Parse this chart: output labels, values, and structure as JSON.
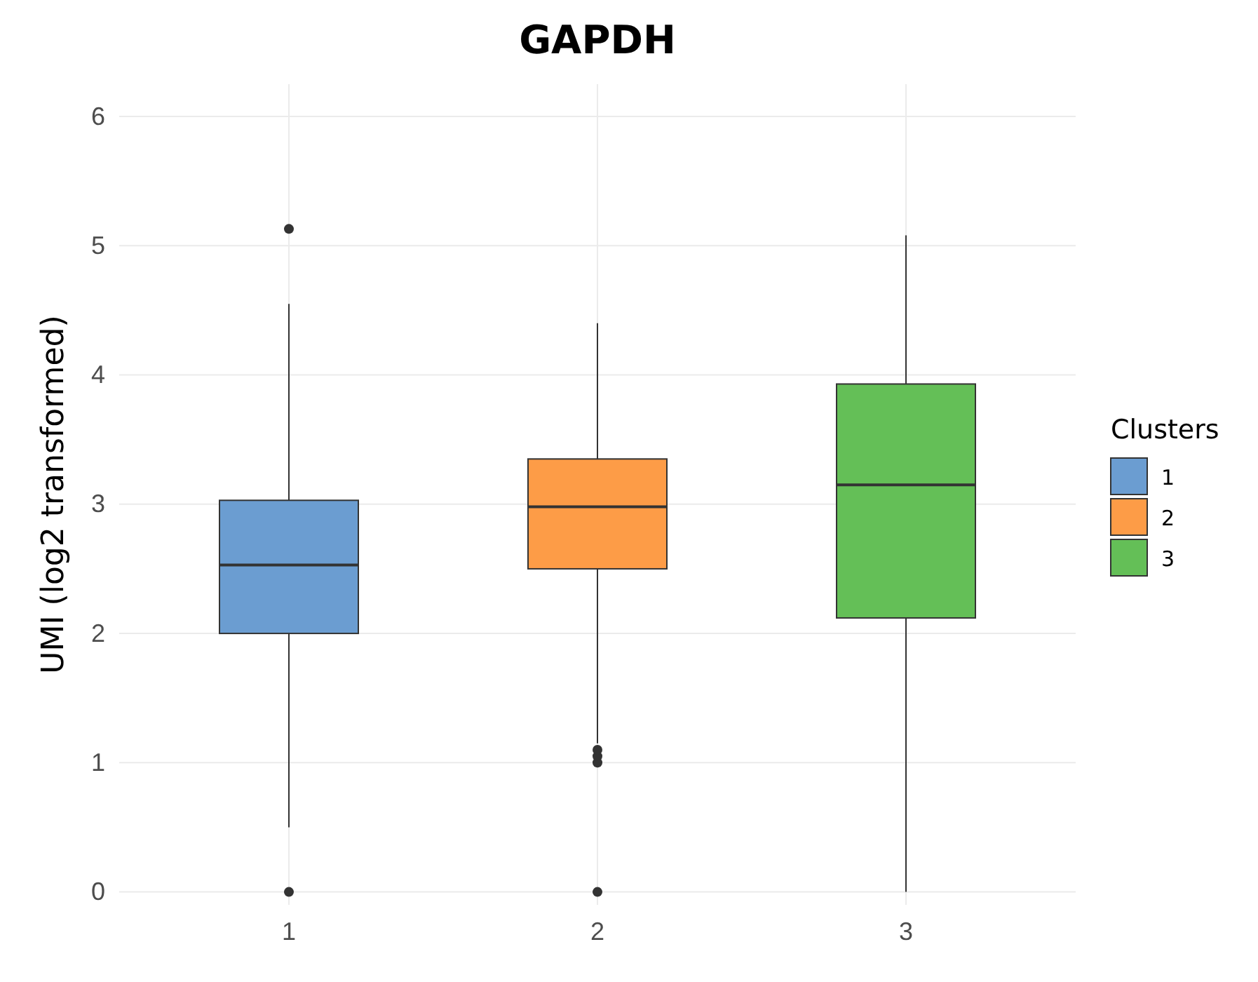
{
  "chart_data": {
    "type": "box",
    "title": "GAPDH",
    "ylabel": "UMI (log2 transformed)",
    "legend_title": "Clusters",
    "categories": [
      "1",
      "2",
      "3"
    ],
    "series": [
      {
        "name": "1",
        "color": "#6b9dd1",
        "boxes": [
          {
            "low": 0.5,
            "q1": 2.0,
            "median": 2.53,
            "q3": 3.03,
            "high": 4.55,
            "outliers": [
              0,
              5.13
            ]
          },
          null,
          null
        ]
      },
      {
        "name": "2",
        "color": "#fd9c47",
        "boxes": [
          null,
          {
            "low": 1.15,
            "q1": 2.5,
            "median": 2.98,
            "q3": 3.35,
            "high": 4.4,
            "outliers": [
              0,
              1.0,
              1.05,
              1.1
            ]
          },
          null
        ]
      },
      {
        "name": "3",
        "color": "#64bf57",
        "boxes": [
          null,
          null,
          {
            "low": 0,
            "q1": 2.12,
            "median": 3.15,
            "q3": 3.93,
            "high": 5.08
          }
        ]
      }
    ],
    "ylim": [
      -0.1,
      6.25
    ],
    "yticks": [
      0,
      1,
      2,
      3,
      4,
      5,
      6
    ],
    "grid": true,
    "legend": "right"
  }
}
